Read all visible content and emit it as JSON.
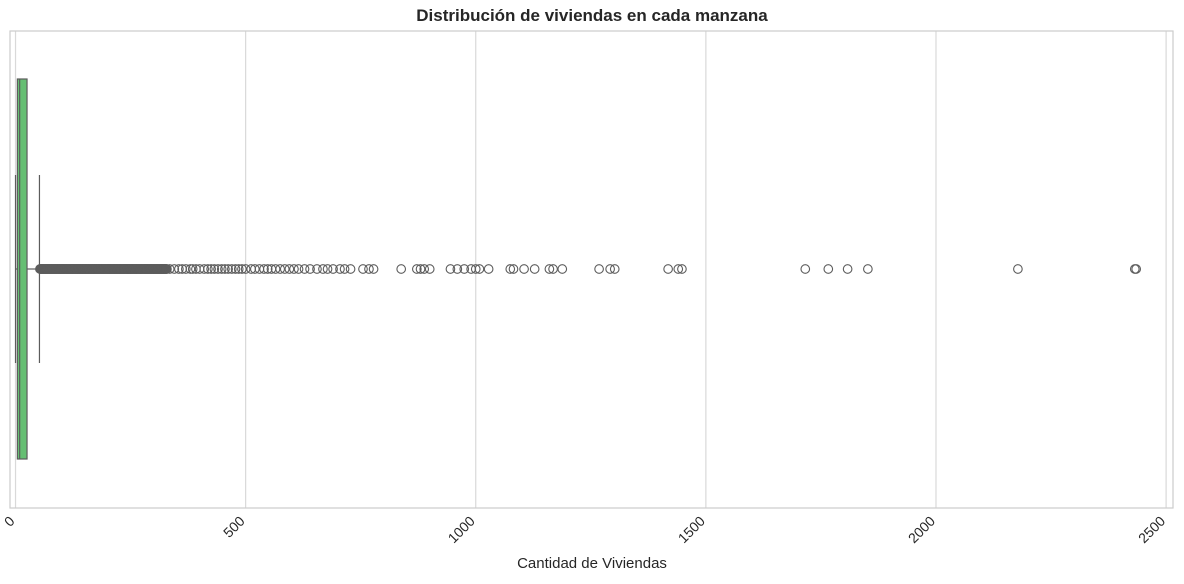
{
  "chart_data": {
    "type": "boxplot",
    "title": "Distribución de viviendas en cada manzana",
    "xlabel": "Cantidad de Viviendas",
    "ylabel": "",
    "xlim": [
      -12,
      2515
    ],
    "xticks": [
      0,
      500,
      1000,
      1500,
      2000,
      2500
    ],
    "xtick_labels": [
      "0",
      "500",
      "1000",
      "1500",
      "2000",
      "2500"
    ],
    "xtick_rotation": 45,
    "grid": "vertical",
    "colors": {
      "box": "#66bf73",
      "line": "#5c5c5c",
      "grid": "#d9d9d9",
      "frame": "#cccccc"
    },
    "box": {
      "whisker_low": 0,
      "q1": 4,
      "median": 9,
      "q3": 25,
      "whisker_high": 52
    },
    "outlier_dense_range": [
      53,
      330
    ],
    "outliers": [
      335,
      345,
      355,
      362,
      370,
      380,
      385,
      392,
      400,
      410,
      418,
      425,
      432,
      440,
      448,
      455,
      462,
      470,
      478,
      485,
      492,
      500,
      512,
      520,
      530,
      540,
      548,
      556,
      565,
      575,
      585,
      595,
      605,
      615,
      628,
      640,
      655,
      668,
      678,
      690,
      705,
      715,
      728,
      755,
      768,
      778,
      838,
      872,
      880,
      888,
      900,
      945,
      960,
      975,
      990,
      1000,
      1008,
      1028,
      1075,
      1082,
      1105,
      1128,
      1160,
      1168,
      1188,
      1268,
      1292,
      1302,
      1418,
      1440,
      1448,
      1716,
      1766,
      1808,
      1852,
      2178,
      2432,
      2435
    ]
  }
}
